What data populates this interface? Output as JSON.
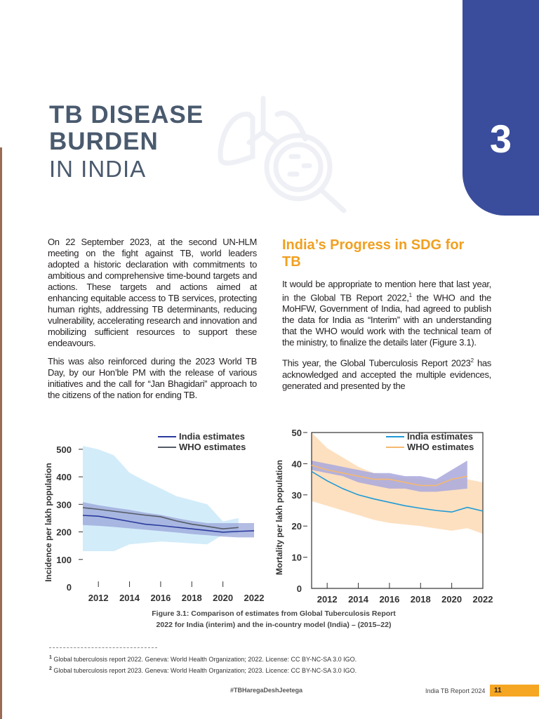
{
  "chapter": {
    "number": "3",
    "title_bold_1": "TB DISEASE",
    "title_bold_2": "BURDEN",
    "title_light": "IN INDIA",
    "icon": "lungs-magnifier-icon"
  },
  "left_column": {
    "para1": "On 22 September 2023, at the second UN-HLM meeting on the fight against TB, world leaders adopted a historic declaration with commitments to ambitious and comprehensive time-bound targets and actions. These targets and actions aimed at enhancing equitable access to TB services, protecting human rights, addressing TB determinants, reducing vulnerability, accelerating research and innovation and mobilizing sufficient resources to support these endeavours.",
    "para2": "This was also reinforced during the 2023 World TB Day, by our Hon’ble PM with the release of various initiatives and the call for “Jan Bhagidari” approach to the citizens of the nation for ending TB."
  },
  "right_column": {
    "heading": "India’s Progress in SDG for TB",
    "para1_a": "It would be appropriate to mention here that last year, in the Global TB Report 2022,",
    "para1_sup": "1",
    "para1_b": " the WHO and the MoHFW, Government of India, had agreed to publish the data for India as “Interim” with an understanding that the WHO would work with the technical team of the ministry, to finalize the details later (Figure 3.1).",
    "para2_a": "This year, the Global Tuberculosis Report 2023",
    "para2_sup": "2",
    "para2_b": " has acknowledged and accepted the multiple evidences, generated and presented by the"
  },
  "chart_data": [
    {
      "type": "line",
      "ylabel": "Incidence per lakh population",
      "xlim": [
        2011,
        2022
      ],
      "ylim": [
        0,
        520
      ],
      "xticks": [
        2012,
        2014,
        2016,
        2018,
        2020,
        2022
      ],
      "yticks": [
        0,
        100,
        200,
        300,
        400,
        500
      ],
      "legend": "top-right",
      "x": [
        2011,
        2012,
        2013,
        2014,
        2015,
        2016,
        2017,
        2018,
        2019,
        2020,
        2021,
        2022
      ],
      "series": [
        {
          "name": "India estimates",
          "color": "#2b3a9c",
          "values": [
            260,
            257,
            248,
            238,
            228,
            223,
            217,
            211,
            205,
            199,
            202,
            204
          ],
          "band_upper": [
            308,
            297,
            288,
            280,
            270,
            262,
            250,
            240,
            232,
            232,
            232,
            232
          ],
          "band_lower": [
            225,
            222,
            218,
            213,
            208,
            203,
            198,
            192,
            188,
            183,
            180,
            180
          ],
          "band_color": "#9aa6d8"
        },
        {
          "name": "WHO estimates",
          "color": "#555b66",
          "values": [
            288,
            282,
            275,
            268,
            261,
            255,
            240,
            228,
            220,
            211,
            216,
            null
          ],
          "band_upper": [
            512,
            500,
            478,
            415,
            385,
            358,
            330,
            315,
            300,
            238,
            250,
            null
          ],
          "band_lower": [
            130,
            130,
            130,
            155,
            160,
            165,
            162,
            158,
            155,
            190,
            195,
            null
          ],
          "band_color": "#d3ecfa"
        }
      ]
    },
    {
      "type": "line",
      "ylabel": "Mortality per lakh population",
      "xlim": [
        2011,
        2022
      ],
      "ylim": [
        0,
        50
      ],
      "xticks": [
        2012,
        2014,
        2016,
        2018,
        2020,
        2022
      ],
      "yticks": [
        0,
        10,
        20,
        30,
        40,
        50
      ],
      "legend": "top-right",
      "x": [
        2011,
        2012,
        2013,
        2014,
        2015,
        2016,
        2017,
        2018,
        2019,
        2020,
        2021,
        2022
      ],
      "series": [
        {
          "name": "India estimates",
          "color": "#1e9ad6",
          "values": [
            37.5,
            34.5,
            32,
            30,
            28.7,
            27.6,
            26.5,
            25.7,
            25,
            24.5,
            26,
            24.8
          ],
          "band_upper": [
            50,
            45,
            42,
            39,
            37,
            36,
            35.5,
            35,
            34.5,
            35,
            35,
            34
          ],
          "band_lower": [
            28,
            26.5,
            25,
            23.5,
            22,
            21,
            20.5,
            20,
            19.2,
            18.5,
            19.3,
            17.5
          ],
          "band_color": "#fde0c0"
        },
        {
          "name": "WHO estimates",
          "color": "#f5b870",
          "values": [
            39.5,
            38,
            37,
            36,
            35,
            35,
            34,
            33,
            33,
            35,
            36,
            null
          ],
          "band_upper": [
            41,
            40,
            39,
            38,
            37,
            37,
            36,
            36,
            35,
            38,
            41,
            null
          ],
          "band_lower": [
            38,
            37,
            36,
            34,
            33,
            32,
            32,
            31,
            31,
            31.5,
            32,
            null
          ],
          "band_color": "#a9a8dc"
        }
      ]
    }
  ],
  "figure_caption_1": "Figure 3.1: Comparison of estimates from Global Tuberculosis Report",
  "figure_caption_2": "2022 for India (interim) and the in-country model (India) – (2015–22)",
  "footnotes": [
    {
      "num": "1",
      "text": "Global tuberculosis report 2022. Geneva: World Health Organization; 2022. License: CC BY-NC-SA 3.0 IGO."
    },
    {
      "num": "2",
      "text": "Global tuberculosis report 2023. Geneva: World Health Organization; 2023. Licence: CC BY-NC-SA 3.0 IGO."
    }
  ],
  "footer": {
    "hashtag": "#TBHaregaDeshJeetega",
    "report": "India TB Report 2024",
    "page": "11"
  }
}
